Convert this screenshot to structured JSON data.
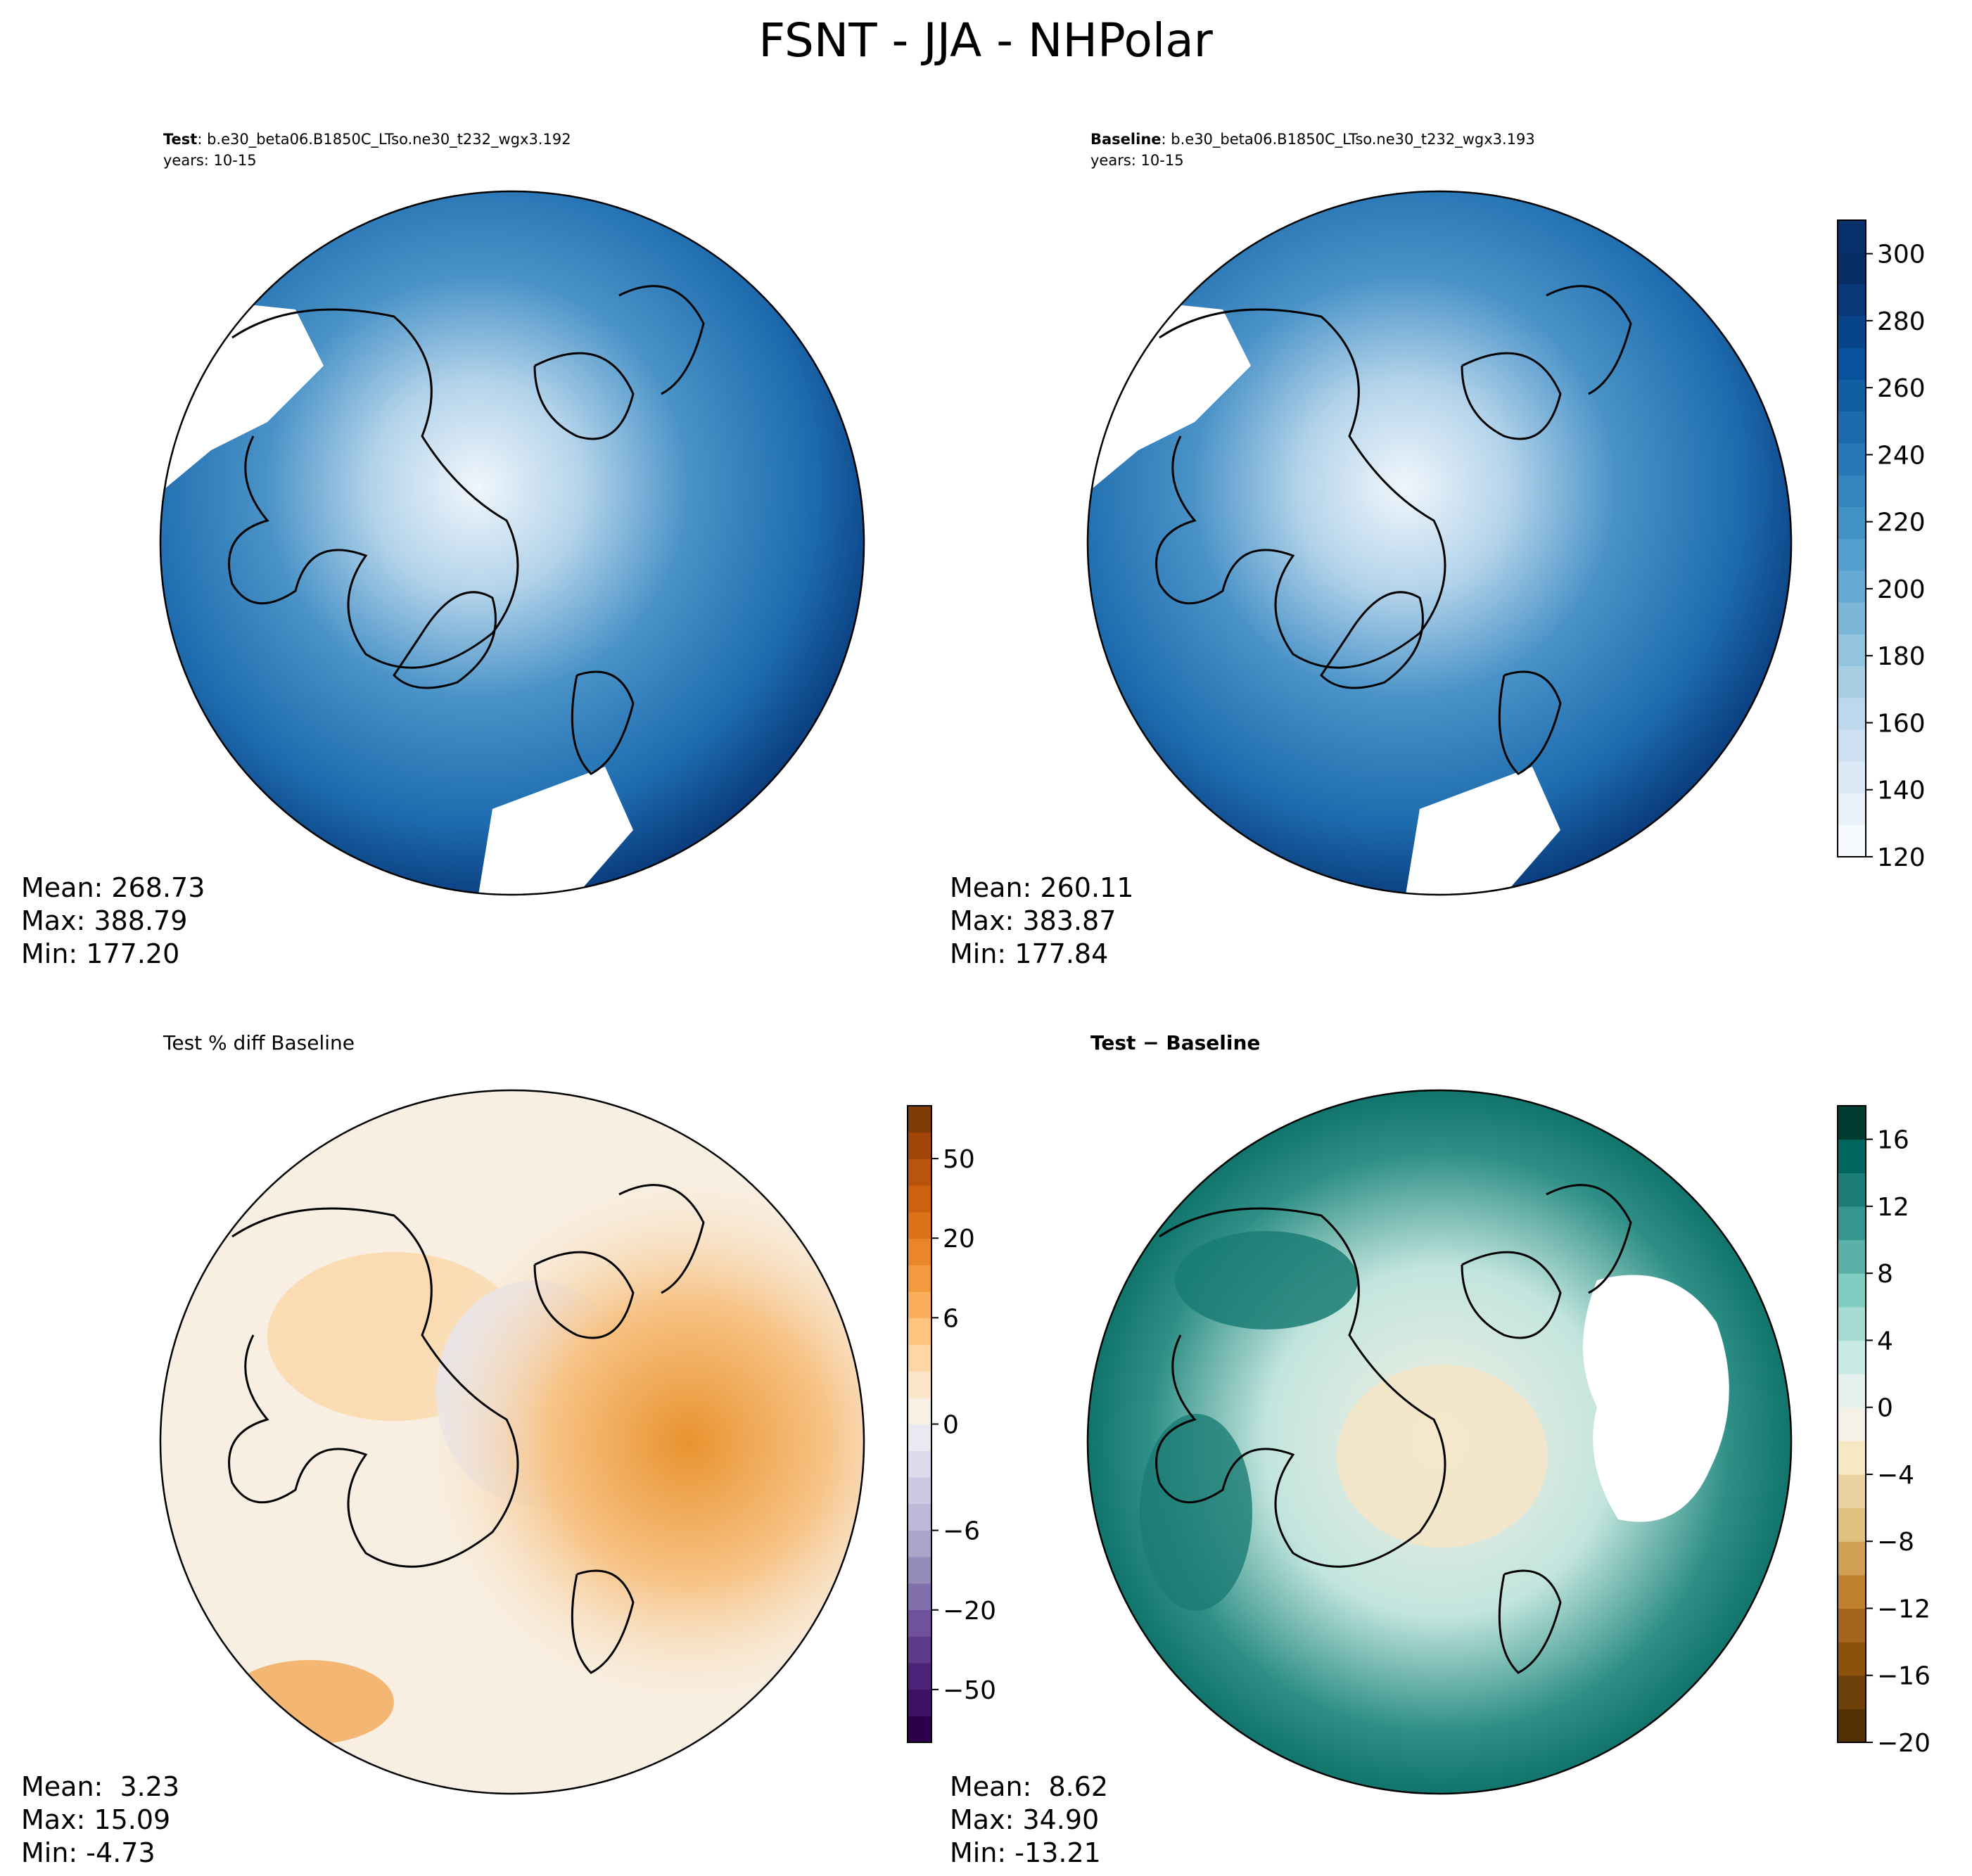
{
  "title": "FSNT - JJA - NHPolar",
  "panels": [
    {
      "id": "test",
      "label_bold": "Test",
      "label_rest": ": b.e30_beta06.B1850C_LTso.ne30_t232_wgx3.192",
      "years": "years: 10-15",
      "stats": {
        "mean": "Mean: 268.73",
        "max": "Max: 388.79",
        "min": "Min: 177.20"
      }
    },
    {
      "id": "baseline",
      "label_bold": "Baseline",
      "label_rest": ": b.e30_beta06.B1850C_LTso.ne30_t232_wgx3.193",
      "years": "years: 10-15",
      "stats": {
        "mean": "Mean: 260.11",
        "max": "Max: 383.87",
        "min": "Min: 177.84"
      }
    },
    {
      "id": "pctdiff",
      "label_bold": "",
      "label_rest": "Test % diff Baseline",
      "years": "",
      "stats": {
        "mean": "Mean:  3.23",
        "max": "Max: 15.09",
        "min": "Min: -4.73"
      }
    },
    {
      "id": "diff",
      "label_bold": "Test − Baseline",
      "label_rest": "",
      "years": "",
      "stats": {
        "mean": "Mean:  8.62",
        "max": "Max: 34.90",
        "min": "Min: -13.21"
      }
    }
  ],
  "chart_data": [
    {
      "type": "heatmap",
      "name": "FSNT Test",
      "projection": "north polar stereographic",
      "colormap": "Blues",
      "colorbar": {
        "levels": 20,
        "ticks": [
          "120",
          "140",
          "160",
          "180",
          "200",
          "220",
          "240",
          "260",
          "280",
          "300"
        ],
        "colors": [
          "#f7fbff",
          "#e9f2fb",
          "#dbe9f6",
          "#cde0f1",
          "#bdd7ec",
          "#a8cee4",
          "#93c4df",
          "#7cb7da",
          "#66aad4",
          "#549fcd",
          "#4292c6",
          "#3585bf",
          "#2878b8",
          "#1d6bae",
          "#125ea3",
          "#08519c",
          "#084489",
          "#083877",
          "#082d66",
          "#08306b"
        ]
      },
      "field_stats": {
        "mean": 268.73,
        "max": 388.79,
        "min": 177.2
      }
    },
    {
      "type": "heatmap",
      "name": "FSNT Baseline",
      "projection": "north polar stereographic",
      "colormap": "Blues",
      "field_stats": {
        "mean": 260.11,
        "max": 383.87,
        "min": 177.84
      }
    },
    {
      "type": "heatmap",
      "name": "Test % diff Baseline",
      "projection": "north polar stereographic",
      "colormap": "PuOr_r",
      "colorbar": {
        "levels": 24,
        "ticks": [
          "50",
          "20",
          "6",
          "0",
          "−6",
          "−20",
          "−50"
        ],
        "colors": [
          "#2d004b",
          "#3d1163",
          "#4d237a",
          "#5e3a8b",
          "#6f529b",
          "#8170ab",
          "#958cbb",
          "#a9a5cb",
          "#bcb9d9",
          "#ccc9e3",
          "#dcdaeb",
          "#eae9f2",
          "#f8f0e4",
          "#fde5c8",
          "#fdd6a6",
          "#fdc57f",
          "#f9af5c",
          "#f29a3d",
          "#e88629",
          "#dc7319",
          "#cc620f",
          "#b8540b",
          "#a14508",
          "#7f3b08"
        ]
      },
      "field_stats": {
        "mean": 3.23,
        "max": 15.09,
        "min": -4.73
      }
    },
    {
      "type": "heatmap",
      "name": "Test − Baseline",
      "projection": "north polar stereographic",
      "colormap": "BrBG",
      "colorbar": {
        "levels": 19,
        "ticks": [
          "16",
          "12",
          "8",
          "4",
          "0",
          "−4",
          "−8",
          "−12",
          "−16",
          "−20"
        ],
        "colors": [
          "#543005",
          "#6e4009",
          "#8c510a",
          "#a6651c",
          "#bf812d",
          "#d0a054",
          "#dfc27d",
          "#ead3a0",
          "#f6e8c3",
          "#f5f1e6",
          "#e4f1ee",
          "#c7eae5",
          "#a6dbd2",
          "#80cdc1",
          "#5bb1a8",
          "#35978f",
          "#1a7c74",
          "#01665e",
          "#003c30"
        ]
      },
      "field_stats": {
        "mean": 8.62,
        "max": 34.9,
        "min": -13.21
      }
    }
  ]
}
